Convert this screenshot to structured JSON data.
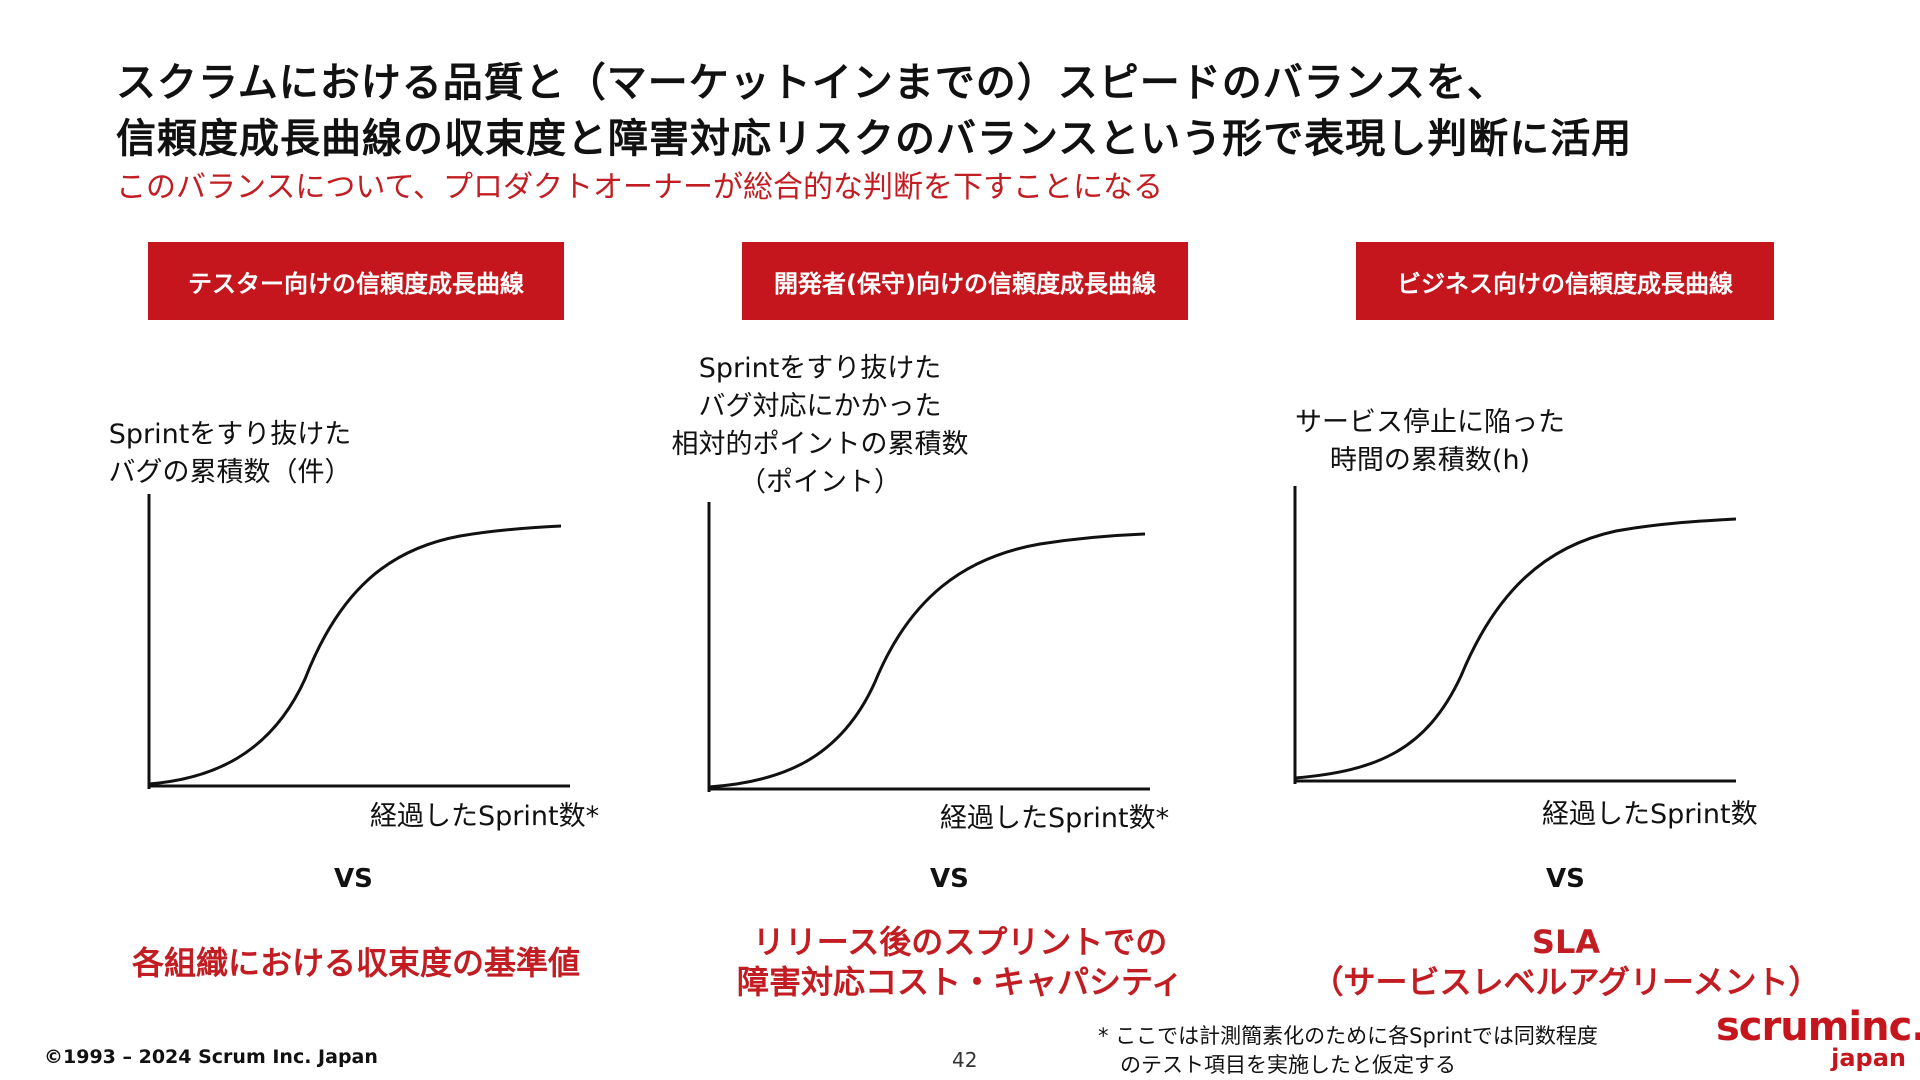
{
  "title_line1": "スクラムにおける品質と（マーケットインまでの）スピードのバランスを、",
  "title_line2": "信頼度成長曲線の収束度と障害対応リスクのバランスという形で表現し判断に活用",
  "subtitle": "このバランスについて、プロダクトオーナーが総合的な判断を下すことになる",
  "panels": [
    {
      "tag": "テスター向けの信頼度成長曲線",
      "ylabel_lines": [
        "Sprintをすり抜けた",
        "バグの累積数（件）"
      ],
      "xlabel": "経過したSprint数*",
      "vs": "VS",
      "bottom_lines": [
        "各組織における収束度の基準値"
      ]
    },
    {
      "tag": "開発者(保守)向けの信頼度成長曲線",
      "ylabel_lines": [
        "Sprintをすり抜けた",
        "バグ対応にかかった",
        "相対的ポイントの累積数",
        "（ポイント）"
      ],
      "xlabel": "経過したSprint数*",
      "vs": "VS",
      "bottom_lines": [
        "リリース後のスプリントでの",
        "障害対応コスト・キャパシティ"
      ]
    },
    {
      "tag": "ビジネス向けの信頼度成長曲線",
      "ylabel_lines": [
        "サービス停止に陥った",
        "時間の累積数(h)"
      ],
      "xlabel": "経過したSprint数",
      "vs": "VS",
      "bottom_lines": [
        "SLA",
        "（サービスレベルアグリーメント）"
      ]
    }
  ],
  "footnote_lines": [
    "* ここでは計測簡素化のために各Sprintでは同数程度",
    "のテスト項目を実施したと仮定する"
  ],
  "copyright": "©1993 – 2024 Scrum Inc. Japan",
  "page_number": "42",
  "logo": {
    "main": "scruminc.",
    "sub": "japan"
  },
  "colors": {
    "accent_red": "#c4161c",
    "text": "#111111",
    "background": "#ffffff"
  },
  "chart_data": [
    {
      "type": "line",
      "title": "テスター向けの信頼度成長曲線",
      "shape": "S-curve (logistic)",
      "ylabel": "Sprintをすり抜けた バグの累積数（件）",
      "xlabel": "経過したSprint数*",
      "ticks": "none"
    },
    {
      "type": "line",
      "title": "開発者(保守)向けの信頼度成長曲線",
      "shape": "S-curve (logistic)",
      "ylabel": "Sprintをすり抜けた バグ対応にかかった 相対的ポイントの累積数 （ポイント）",
      "xlabel": "経過したSprint数*",
      "ticks": "none"
    },
    {
      "type": "line",
      "title": "ビジネス向けの信頼度成長曲線",
      "shape": "S-curve (logistic)",
      "ylabel": "サービス停止に陥った 時間の累積数(h)",
      "xlabel": "経過したSprint数",
      "ticks": "none"
    }
  ]
}
